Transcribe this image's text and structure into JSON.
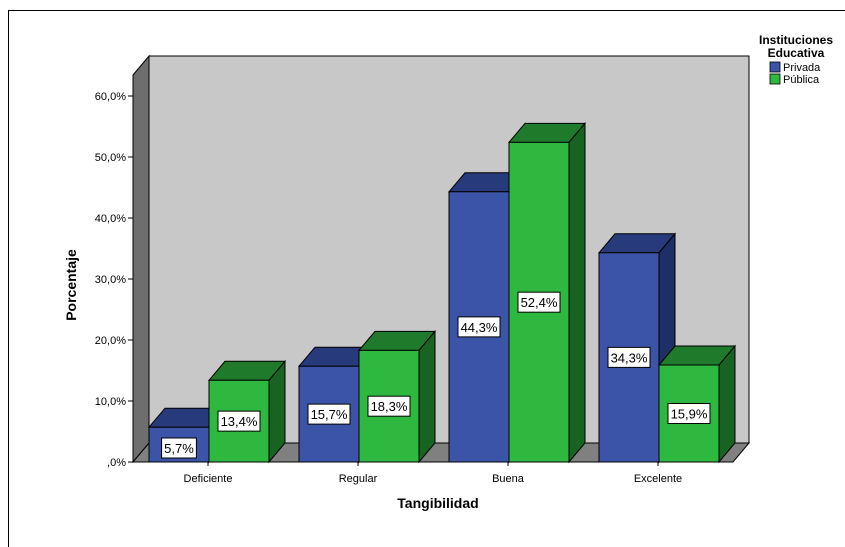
{
  "chart_data": {
    "type": "bar",
    "categories": [
      "Deficiente",
      "Regular",
      "Buena",
      "Excelente"
    ],
    "series": [
      {
        "name": "Privada",
        "values": [
          5.7,
          15.7,
          44.3,
          34.3
        ],
        "labels": [
          "5,7%",
          "15,7%",
          "44,3%",
          "34,3%"
        ]
      },
      {
        "name": "Pública",
        "values": [
          13.4,
          18.3,
          52.4,
          15.9
        ],
        "labels": [
          "13,4%",
          "18,3%",
          "52,4%",
          "15,9%"
        ]
      }
    ],
    "xlabel": "Tangibilidad",
    "ylabel": "Porcentaje",
    "ylim": [
      0,
      60
    ],
    "yticks": [
      0,
      10,
      20,
      30,
      40,
      50,
      60
    ],
    "ytick_labels": [
      ",0%",
      "10,0%",
      "20,0%",
      "30,0%",
      "40,0%",
      "50,0%",
      "60,0%"
    ],
    "legend_title": "Instituciones Educativa",
    "legend_title_lines": [
      "Instituciones",
      "Educativa"
    ],
    "legend_position": "top-right",
    "three_d": true,
    "grid": false
  },
  "colors": {
    "privada_front": "#3c54a8",
    "privada_top": "#263a7c",
    "privada_side": "#1e2f66",
    "publica_front": "#2eb83f",
    "publica_top": "#1f7a2b",
    "publica_side": "#186322",
    "plot_back": "#c8c8c8",
    "floor": "#808080",
    "wall_side": "#6e6e6e"
  }
}
